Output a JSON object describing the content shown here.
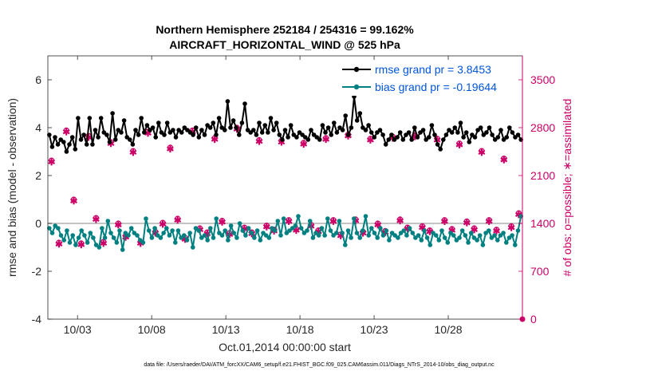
{
  "chart_data": {
    "type": "line",
    "title": "Northern Hemisphere 252184 / 254316 = 99.162%",
    "subtitle": "AIRCRAFT_HORIZONTAL_WIND @ 525 hPa",
    "xlabel": "Oct.01,2014 00:00:00 start",
    "ylabel_left": "rmse and bias (model - observation)",
    "ylabel_right": "# of obs: o=possible; ∗=assimilated",
    "footnote": "data file: /Users/raeder/DAI/ATM_forcXX/CAM6_setup/f.e21.FHIST_BGC.f09_025.CAM6assim.011/Diags_NTrS_2014-10/obs_diag_output.nc",
    "xlim": [
      1.0,
      33.0
    ],
    "ylim_left": [
      -4,
      7
    ],
    "ylim_right": [
      0,
      3850
    ],
    "x_ticks": [
      {
        "v": 3,
        "label": "10/03"
      },
      {
        "v": 8,
        "label": "10/08"
      },
      {
        "v": 13,
        "label": "10/13"
      },
      {
        "v": 18,
        "label": "10/18"
      },
      {
        "v": 23,
        "label": "10/23"
      },
      {
        "v": 28,
        "label": "10/28"
      }
    ],
    "y_ticks_left": [
      {
        "v": -4,
        "label": "-4"
      },
      {
        "v": -2,
        "label": "-2"
      },
      {
        "v": 0,
        "label": "0"
      },
      {
        "v": 2,
        "label": "2"
      },
      {
        "v": 4,
        "label": "4"
      },
      {
        "v": 6,
        "label": "6"
      }
    ],
    "y_ticks_right": [
      {
        "v": 0,
        "label": "0"
      },
      {
        "v": 700,
        "label": "700"
      },
      {
        "v": 1400,
        "label": "1400"
      },
      {
        "v": 2100,
        "label": "2100"
      },
      {
        "v": 2800,
        "label": "2800"
      },
      {
        "v": 3500,
        "label": "3500"
      }
    ],
    "legend_position": "top-right",
    "series": [
      {
        "name": "rmse grand pr = 3.8453",
        "color": "#000000",
        "axis": "left",
        "values": [
          3.7,
          3.2,
          3.6,
          3.3,
          3.5,
          3.4,
          3.0,
          3.3,
          3.6,
          3.1,
          4.4,
          3.5,
          3.7,
          3.3,
          4.4,
          3.3,
          3.9,
          3.6,
          4.4,
          3.8,
          3.7,
          3.4,
          4.6,
          3.5,
          3.9,
          3.8,
          4.3,
          3.6,
          3.5,
          3.3,
          3.9,
          3.7,
          4.4,
          3.8,
          4.1,
          3.9,
          4.0,
          3.6,
          4.2,
          3.8,
          3.7,
          4.2,
          3.8,
          3.9,
          3.6,
          3.9,
          3.8,
          4.0,
          3.9,
          3.8,
          3.7,
          4.0,
          3.6,
          3.9,
          3.7,
          4.1,
          4.0,
          4.2,
          3.7,
          4.4,
          4.0,
          3.9,
          5.1,
          4.0,
          4.3,
          4.0,
          3.7,
          4.2,
          5.0,
          3.9,
          3.8,
          3.9,
          3.7,
          4.2,
          3.8,
          4.1,
          3.8,
          4.4,
          3.9,
          4.2,
          3.7,
          3.5,
          3.9,
          3.6,
          4.1,
          3.7,
          3.6,
          3.8,
          3.7,
          3.6,
          3.5,
          3.9,
          3.7,
          3.6,
          3.5,
          4.1,
          3.8,
          4.0,
          3.7,
          4.2,
          3.8,
          4.0,
          3.9,
          4.5,
          3.7,
          4.0,
          5.3,
          4.3,
          4.6,
          4.0,
          3.9,
          4.1,
          3.8,
          3.6,
          3.8,
          3.9,
          3.7,
          3.3,
          3.5,
          3.7,
          3.5,
          3.6,
          3.8,
          3.5,
          3.7,
          3.8,
          3.5,
          4.0,
          3.6,
          3.8,
          3.9,
          3.5,
          3.6,
          4.1,
          3.7,
          3.3,
          3.1,
          3.5,
          3.7,
          3.9,
          3.8,
          4.0,
          3.8,
          4.2,
          3.6,
          3.8,
          3.4,
          3.7,
          3.6,
          3.9,
          4.0,
          3.7,
          3.8,
          4.0,
          3.7,
          3.5,
          3.6,
          3.9,
          3.5,
          3.6,
          4.0,
          3.8,
          3.6,
          3.7,
          3.5
        ]
      },
      {
        "name": "bias grand pr = -0.19644",
        "color": "#008080",
        "axis": "left",
        "values": [
          -0.2,
          -0.4,
          -0.1,
          -0.2,
          -0.5,
          -0.7,
          -0.3,
          -0.8,
          -0.5,
          -0.9,
          -0.6,
          -0.3,
          -0.5,
          -0.8,
          -0.4,
          -0.6,
          -0.9,
          -1.0,
          -0.2,
          -0.6,
          0.1,
          -0.4,
          -0.6,
          -0.8,
          -0.3,
          -1.1,
          -0.4,
          -0.5,
          -0.2,
          -0.4,
          -0.5,
          -0.7,
          -0.8,
          0.2,
          -0.3,
          -0.6,
          -0.2,
          -0.5,
          -0.6,
          -0.4,
          -0.2,
          -0.5,
          -0.3,
          -0.8,
          -0.3,
          -0.6,
          -0.5,
          -0.7,
          -0.4,
          -1.0,
          -0.2,
          -0.3,
          -0.6,
          -0.5,
          -0.7,
          -0.2,
          -0.6,
          0.2,
          -0.4,
          -0.5,
          -0.3,
          -0.7,
          -0.1,
          -0.4,
          -0.6,
          0.0,
          -0.3,
          -0.5,
          -0.2,
          -0.4,
          -0.6,
          -0.3,
          -0.7,
          -0.4,
          -0.5,
          -0.6,
          -0.2,
          -0.3,
          0.1,
          -0.5,
          0.2,
          -0.4,
          -0.3,
          -0.2,
          -0.1,
          0.3,
          -0.2,
          -0.4,
          -0.3,
          0.1,
          -0.6,
          -0.4,
          -0.5,
          -0.2,
          -0.5,
          0.2,
          -0.3,
          -0.5,
          -0.4,
          0.1,
          -0.4,
          -0.9,
          -0.3,
          -0.6,
          0.2,
          -0.4,
          -0.6,
          -0.3,
          0.3,
          -0.5,
          -0.2,
          -0.4,
          -0.6,
          -0.2,
          -0.5,
          -0.3,
          -0.7,
          -0.4,
          -0.5,
          -0.6,
          -0.4,
          -0.3,
          -0.5,
          -0.2,
          -0.4,
          -0.6,
          -0.5,
          -0.7,
          -0.3,
          -0.6,
          -0.9,
          -0.4,
          -0.5,
          -0.7,
          -0.3,
          -0.6,
          -0.8,
          -0.4,
          -0.5,
          -0.7,
          -0.6,
          -0.3,
          -0.5,
          -0.8,
          -0.4,
          -0.6,
          -0.7,
          -0.5,
          -0.9,
          -0.4,
          -0.3,
          -0.6,
          -0.5,
          -0.7,
          -0.5,
          -0.4,
          -0.8,
          -0.6,
          -0.5,
          -0.9,
          -0.3,
          0.3
        ]
      },
      {
        "name": "obs possible",
        "color": "#cc0066",
        "axis": "right",
        "marker": "o",
        "x": [
          1.25,
          1.75,
          2.25,
          2.75,
          3.25,
          3.75,
          4.25,
          4.75,
          5.25,
          5.75,
          6.25,
          6.75,
          7.25,
          7.75,
          8.25,
          8.75,
          9.25,
          9.75,
          10.25,
          10.75,
          11.25,
          11.75,
          12.25,
          12.75,
          13.25,
          13.75,
          14.25,
          14.75,
          15.25,
          15.75,
          16.25,
          16.75,
          17.25,
          17.75,
          18.25,
          18.75,
          19.25,
          19.75,
          20.25,
          20.75,
          21.25,
          21.75,
          22.25,
          22.75,
          23.25,
          23.75,
          24.25,
          24.75,
          25.25,
          25.75,
          26.25,
          26.75,
          27.25,
          27.75,
          28.25,
          28.75,
          29.25,
          29.75,
          30.25,
          30.75,
          31.25,
          31.75,
          32.25,
          32.75
        ],
        "values": [
          2320,
          1120,
          2760,
          1750,
          1110,
          2680,
          1480,
          1130,
          2590,
          1400,
          1220,
          2460,
          1130,
          2740,
          1280,
          1410,
          2510,
          1470,
          1190,
          2760,
          1330,
          1270,
          2650,
          1440,
          1260,
          2800,
          1340,
          1270,
          2620,
          1370,
          1310,
          2610,
          1450,
          1320,
          2580,
          1380,
          1300,
          2650,
          1450,
          1240,
          2700,
          1460,
          1280,
          2640,
          1400,
          1290,
          2670,
          1460,
          1340,
          2690,
          1360,
          1300,
          2640,
          1450,
          1320,
          2570,
          1430,
          1330,
          2460,
          1450,
          1310,
          2350,
          1360,
          1550
        ]
      },
      {
        "name": "obs assimilated",
        "color": "#cc0066",
        "axis": "right",
        "marker": "*",
        "x": [
          1.25,
          1.75,
          2.25,
          2.75,
          3.25,
          3.75,
          4.25,
          4.75,
          5.25,
          5.75,
          6.25,
          6.75,
          7.25,
          7.75,
          8.25,
          8.75,
          9.25,
          9.75,
          10.25,
          10.75,
          11.25,
          11.75,
          12.25,
          12.75,
          13.25,
          13.75,
          14.25,
          14.75,
          15.25,
          15.75,
          16.25,
          16.75,
          17.25,
          17.75,
          18.25,
          18.75,
          19.25,
          19.75,
          20.25,
          20.75,
          21.25,
          21.75,
          22.25,
          22.75,
          23.25,
          23.75,
          24.25,
          24.75,
          25.25,
          25.75,
          26.25,
          26.75,
          27.25,
          27.75,
          28.25,
          28.75,
          29.25,
          29.75,
          30.25,
          30.75,
          31.25,
          31.75,
          32.25,
          32.75
        ],
        "values": [
          2300,
          1100,
          2740,
          1730,
          1090,
          2660,
          1460,
          1110,
          2570,
          1380,
          1200,
          2440,
          1110,
          2720,
          1260,
          1390,
          2490,
          1450,
          1170,
          2740,
          1310,
          1250,
          2630,
          1420,
          1240,
          2780,
          1320,
          1250,
          2600,
          1350,
          1290,
          2590,
          1430,
          1300,
          2560,
          1360,
          1280,
          2630,
          1430,
          1220,
          2680,
          1440,
          1260,
          2620,
          1380,
          1270,
          2650,
          1440,
          1320,
          2670,
          1340,
          1280,
          2620,
          1430,
          1300,
          2550,
          1410,
          1310,
          2440,
          1430,
          1290,
          2330,
          1340,
          1530
        ]
      }
    ],
    "extra_right_point": {
      "x": 33.0,
      "value": 0
    }
  }
}
